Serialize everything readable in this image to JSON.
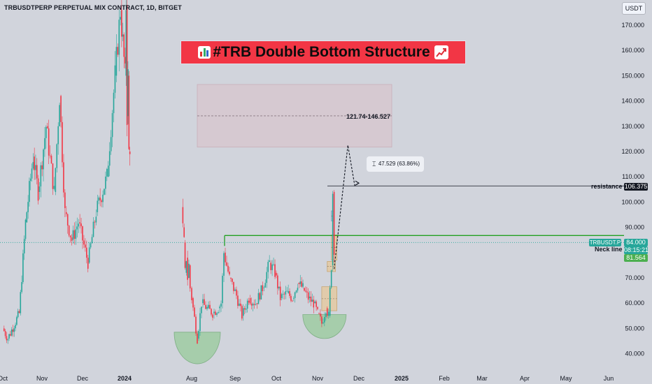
{
  "symbol_title": "TRBUSDTPERP PERPETUAL MIX CONTRACT, 1D, BITGET",
  "currency_button": "USDT",
  "idea_title": "#TRB Double Bottom Structure",
  "icons": [
    "bar-chart-emoji-icon",
    "chart-increasing-emoji-icon",
    "ruler-icon"
  ],
  "colors": {
    "bull": "#26a69a",
    "bear": "#f23645",
    "neckline": "#22a022",
    "resistance": "#434651",
    "target_zone": "#d7c8d0",
    "order_block": "#e6caa0",
    "bottom_arc": "#9ccca0"
  },
  "annotations": {
    "target_range": "121.74-146.527",
    "measure": "47.529 (63.86%)",
    "resistance_label": "resistance",
    "neckline_label": "Neck line"
  },
  "price_tags": {
    "resistance": "106.375",
    "ticker": "TRBUSDT.P",
    "last_price": "84.000",
    "countdown": "08:15:21",
    "bid": "81.564"
  },
  "chart_data": {
    "type": "candlestick",
    "title": "",
    "xlabel": "",
    "ylabel": "",
    "ylim": [
      36,
      178
    ],
    "price_ticks": [
      "170.000",
      "160.000",
      "150.000",
      "140.000",
      "130.000",
      "120.000",
      "110.000",
      "100.000",
      "90.000",
      "80.000",
      "70.000",
      "60.000",
      "50.000",
      "40.000"
    ],
    "time_ticks": [
      "Oct",
      "Nov",
      "Dec",
      "2024",
      "Aug",
      "Sep",
      "Oct",
      "Nov",
      "Dec",
      "2025",
      "Feb",
      "Mar",
      "Apr",
      "May",
      "Jun"
    ],
    "levels": {
      "resistance": 106.375,
      "neckline": 84.0,
      "last_price": 84.0,
      "bid": 81.564
    },
    "target_zone": [
      121.74,
      146.527
    ],
    "target_mid": 134.1,
    "projection_path": [
      {
        "date": "2024-11-13",
        "price": 73.5
      },
      {
        "date": "2024-11-23",
        "price": 122.5
      },
      {
        "date": "2024-11-28",
        "price": 106.5
      },
      {
        "date": "2024-12-01",
        "price": 107.5
      }
    ],
    "bottoms": [
      {
        "center": "2024-08-05",
        "low": 42,
        "arc_depth": 12.5
      },
      {
        "center": "2024-11-06",
        "low": 49,
        "arc_depth": 9.5
      }
    ],
    "zones": [
      {
        "from": "2024-11-04",
        "to": "2024-11-15",
        "low": 57,
        "high": 66.5,
        "style": "order_block"
      },
      {
        "from": "2024-11-08",
        "to": "2024-11-14",
        "low": 72.5,
        "high": 76.5,
        "style": "order_block"
      },
      {
        "from": "2024-11-11",
        "to": "2024-11-15",
        "low": 77,
        "high": 87,
        "style": "order_block"
      },
      {
        "from": "2024-11-11",
        "to": "2024-11-13",
        "low": 92.5,
        "high": 96.5,
        "style": "blue"
      }
    ],
    "price_path_2023": [
      {
        "date": "2023-10-01",
        "price": 50
      },
      {
        "date": "2023-10-05",
        "price": 46
      },
      {
        "date": "2023-10-14",
        "price": 56
      },
      {
        "date": "2023-10-19",
        "price": 92
      },
      {
        "date": "2023-10-25",
        "price": 118
      },
      {
        "date": "2023-10-29",
        "price": 104
      },
      {
        "date": "2023-11-04",
        "price": 130
      },
      {
        "date": "2023-11-10",
        "price": 104
      },
      {
        "date": "2023-11-14",
        "price": 142
      },
      {
        "date": "2023-11-18",
        "price": 96
      },
      {
        "date": "2023-11-23",
        "price": 85
      },
      {
        "date": "2023-11-28",
        "price": 92
      },
      {
        "date": "2023-12-05",
        "price": 76
      },
      {
        "date": "2023-12-11",
        "price": 96
      },
      {
        "date": "2023-12-19",
        "price": 110
      },
      {
        "date": "2023-12-25",
        "price": 150
      },
      {
        "date": "2023-12-29",
        "price": 176
      },
      {
        "date": "2024-01-03",
        "price": 150
      },
      {
        "date": "2024-01-06",
        "price": 178
      },
      {
        "date": "2024-01-09",
        "price": 134
      },
      {
        "date": "2024-01-12",
        "price": 150
      },
      {
        "date": "2024-01-15",
        "price": 120
      },
      {
        "date": "2024-01-18",
        "price": 122
      }
    ],
    "price_path_2024": [
      {
        "date": "2024-07-01",
        "price": 98
      },
      {
        "date": "2024-07-04",
        "price": 90
      },
      {
        "date": "2024-07-08",
        "price": 84
      },
      {
        "date": "2024-07-11",
        "price": 72
      },
      {
        "date": "2024-07-15",
        "price": 78
      },
      {
        "date": "2024-07-19",
        "price": 70
      },
      {
        "date": "2024-07-23",
        "price": 75
      },
      {
        "date": "2024-07-27",
        "price": 66
      },
      {
        "date": "2024-08-01",
        "price": 62
      },
      {
        "date": "2024-08-05",
        "price": 46
      },
      {
        "date": "2024-08-08",
        "price": 60
      },
      {
        "date": "2024-08-12",
        "price": 58
      },
      {
        "date": "2024-08-16",
        "price": 56
      },
      {
        "date": "2024-08-20",
        "price": 58
      },
      {
        "date": "2024-08-22",
        "price": 60
      },
      {
        "date": "2024-08-24",
        "price": 80
      },
      {
        "date": "2024-08-28",
        "price": 70
      },
      {
        "date": "2024-09-02",
        "price": 63
      },
      {
        "date": "2024-09-06",
        "price": 55
      },
      {
        "date": "2024-09-11",
        "price": 62
      },
      {
        "date": "2024-09-16",
        "price": 60
      },
      {
        "date": "2024-09-21",
        "price": 66
      },
      {
        "date": "2024-09-26",
        "price": 76
      },
      {
        "date": "2024-09-30",
        "price": 72
      },
      {
        "date": "2024-10-04",
        "price": 62
      },
      {
        "date": "2024-10-09",
        "price": 64
      },
      {
        "date": "2024-10-13",
        "price": 62
      },
      {
        "date": "2024-10-17",
        "price": 68
      },
      {
        "date": "2024-10-21",
        "price": 66
      },
      {
        "date": "2024-10-25",
        "price": 62
      },
      {
        "date": "2024-10-29",
        "price": 60
      },
      {
        "date": "2024-11-01",
        "price": 56
      },
      {
        "date": "2024-11-04",
        "price": 52
      },
      {
        "date": "2024-11-07",
        "price": 58
      },
      {
        "date": "2024-11-09",
        "price": 55
      },
      {
        "date": "2024-11-11",
        "price": 75
      },
      {
        "date": "2024-11-12",
        "price": 104
      },
      {
        "date": "2024-11-13",
        "price": 82
      }
    ]
  }
}
